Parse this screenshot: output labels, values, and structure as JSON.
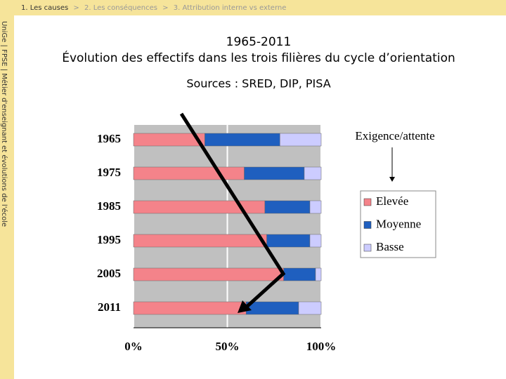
{
  "breadcrumb": [
    "1. Les causes",
    "2. Les conséquences",
    "3. Attribution interne vs externe"
  ],
  "breadcrumb_separator": ">",
  "sidebar": "UniGe | FPSE | Métier d'enseignant et évolutions de l'école",
  "chart_data": {
    "type": "stacked_bar_horizontal",
    "title": "1965-2011",
    "subtitle": "Évolution des effectifs dans les trois filières du cycle d’orientation",
    "source": "Sources : SRED, DIP, PISA",
    "legend_title": "Exigence/attente",
    "categories": [
      "1965",
      "1975",
      "1985",
      "1995",
      "2005",
      "2011"
    ],
    "series": [
      {
        "name": "Elevée",
        "color": "#f4838a",
        "values": [
          38,
          59,
          70,
          71,
          80,
          60
        ]
      },
      {
        "name": "Moyenne",
        "color": "#1f5fbf",
        "values": [
          40,
          32,
          24,
          23,
          17,
          28
        ]
      },
      {
        "name": "Basse",
        "color": "#ccccff",
        "values": [
          22,
          9,
          6,
          6,
          3,
          12
        ]
      }
    ],
    "xlim": [
      0,
      100
    ],
    "xticks": [
      {
        "value": 0,
        "label": "0%"
      },
      {
        "value": 50,
        "label": "50%"
      },
      {
        "value": 100,
        "label": "100%"
      }
    ],
    "grid": true,
    "legend": "right"
  }
}
